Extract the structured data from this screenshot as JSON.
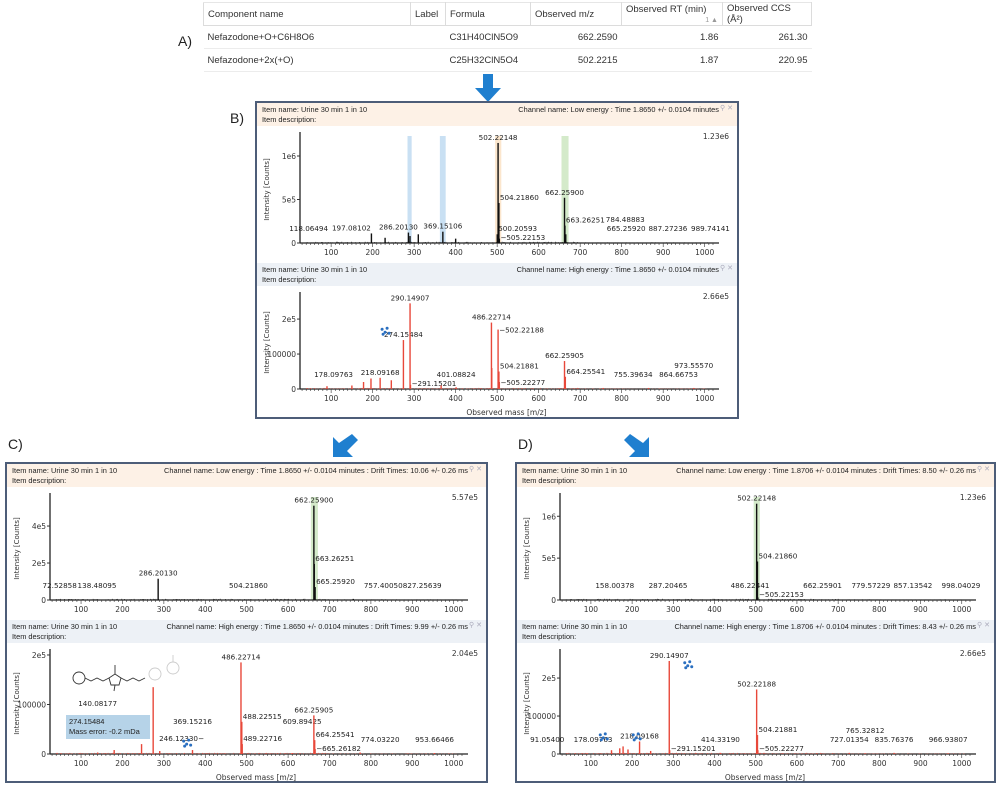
{
  "panel_labels": {
    "a": "A)",
    "b": "B)",
    "c": "C)",
    "d": "D)"
  },
  "table": {
    "columns": [
      "Component name",
      "Label",
      "Formula",
      "Observed m/z",
      "Observed RT (min)",
      "Observed CCS (Å²)"
    ],
    "sort_indicator": "1 ▲",
    "rows": [
      [
        "Nefazodone+O+C6H8O6",
        "",
        "C31H40ClN5O9",
        "662.2590",
        "1.86",
        "261.30"
      ],
      [
        "Nefazodone+2x(+O)",
        "",
        "C25H32ClN5O4",
        "502.2215",
        "1.87",
        "220.95"
      ]
    ]
  },
  "colors": {
    "arrow": "#1f7fcf",
    "low_energy_peaks": "#111111",
    "high_energy_peaks": "#e8483a",
    "panel_border": "#4d5d78",
    "highlight_green": "#cfe8c4",
    "highlight_blue": "#bcd8f0",
    "highlight_orange": "#fbe3c8",
    "fragment_icon": "#2a6fc0"
  },
  "item_name": "Item name: Urine 30 min 1 in 10",
  "item_description": "Item description:",
  "icons": {
    "pin": "pin-icon",
    "close": "close-icon"
  },
  "tooltip": {
    "line1": "274.15484",
    "line2": "Mass error: -0.2 mDa"
  },
  "chart_data": [
    {
      "type": "bar",
      "panel": "B",
      "channel": "Channel name: Low energy : Time 1.8650 +/- 0.0104 minutes",
      "ymax_label": "1.23e6",
      "ymax": 1230000,
      "xlim": [
        25,
        1020
      ],
      "ylabel": "Intensity [Counts]",
      "xlabel": "",
      "xticks": [
        100,
        200,
        300,
        400,
        500,
        600,
        700,
        800,
        900,
        1000
      ],
      "yticks": [
        [
          0,
          "0"
        ],
        [
          500000,
          "5e5"
        ],
        [
          1000000,
          "1e6"
        ]
      ],
      "highlights": [
        {
          "from": 284,
          "to": 294,
          "color": "blue"
        },
        {
          "from": 362,
          "to": 376,
          "color": "blue"
        },
        {
          "from": 495,
          "to": 510,
          "color": "orange"
        },
        {
          "from": 655,
          "to": 672,
          "color": "green"
        }
      ],
      "fragment_icons": [],
      "peaks": [
        [
          118.06494,
          8000,
          "118.06494"
        ],
        [
          197.08102,
          110000,
          "197.08102"
        ],
        [
          230,
          60000,
          ""
        ],
        [
          286.2013,
          120000,
          "286.20130"
        ],
        [
          290,
          80000,
          ""
        ],
        [
          310,
          100000,
          ""
        ],
        [
          369.15106,
          130000,
          "369.15106"
        ],
        [
          400,
          50000,
          ""
        ],
        [
          500.20593,
          100000,
          "500.20593"
        ],
        [
          502.22148,
          1150000,
          "502.22148"
        ],
        [
          504.2186,
          460000,
          "504.21860"
        ],
        [
          505.22153,
          50000,
          "−505.22153"
        ],
        [
          662.259,
          520000,
          "662.25900"
        ],
        [
          663.26251,
          200000,
          "663.26251"
        ],
        [
          665.2592,
          100000,
          "665.25920"
        ],
        [
          784.48883,
          5000,
          "784.48883"
        ],
        [
          887.27236,
          4000,
          "887.27236"
        ],
        [
          989.74141,
          4000,
          "989.74141"
        ]
      ]
    },
    {
      "type": "bar",
      "panel": "B",
      "channel": "Channel name: High energy : Time 1.8650 +/- 0.0104 minutes",
      "ymax_label": "2.66e5",
      "ymax": 266000,
      "xlim": [
        25,
        1020
      ],
      "ylabel": "Intensity [Counts]",
      "xlabel": "Observed mass [m/z]",
      "xticks": [
        100,
        200,
        300,
        400,
        500,
        600,
        700,
        800,
        900,
        1000
      ],
      "yticks": [
        [
          0,
          "0"
        ],
        [
          100000,
          "100000"
        ],
        [
          200000,
          "2e5"
        ]
      ],
      "highlights": [],
      "fragment_icons": [
        [
          230,
          165000
        ]
      ],
      "peaks": [
        [
          90,
          8000,
          ""
        ],
        [
          150,
          10000,
          ""
        ],
        [
          178.09763,
          20000,
          "178.09763"
        ],
        [
          196,
          30000,
          ""
        ],
        [
          218.09168,
          32000,
          "218.09168"
        ],
        [
          245,
          25000,
          ""
        ],
        [
          274.15484,
          140000,
          "274.15484"
        ],
        [
          290.14907,
          245000,
          "290.14907"
        ],
        [
          291.15201,
          12000,
          "−291.15201"
        ],
        [
          365,
          10000,
          ""
        ],
        [
          401.08824,
          5000,
          "401.08824"
        ],
        [
          486.22714,
          190000,
          "486.22714"
        ],
        [
          487,
          60000,
          ""
        ],
        [
          502.22188,
          170000,
          "−502.22188"
        ],
        [
          504.21881,
          50000,
          "504.21881"
        ],
        [
          505.22277,
          20000,
          "−505.22277"
        ],
        [
          662.25905,
          80000,
          "662.25905"
        ],
        [
          664.25541,
          35000,
          "664.25541"
        ],
        [
          755.39634,
          3000,
          "755.39634"
        ],
        [
          864.66753,
          3000,
          "864.66753"
        ],
        [
          973.5557,
          3000,
          "973.55570"
        ]
      ]
    },
    {
      "type": "bar",
      "panel": "C",
      "channel": "Channel name: Low energy : Time 1.8650 +/- 0.0104 minutes : Drift Times: 10.06 +/- 0.26 ms",
      "ymax_label": "5.57e5",
      "ymax": 557000,
      "xlim": [
        25,
        1020
      ],
      "ylabel": "Intensity [Counts]",
      "xlabel": "",
      "xticks": [
        100,
        200,
        300,
        400,
        500,
        600,
        700,
        800,
        900,
        1000
      ],
      "yticks": [
        [
          0,
          "0"
        ],
        [
          200000,
          "2e5"
        ],
        [
          400000,
          "4e5"
        ]
      ],
      "highlights": [
        {
          "from": 655,
          "to": 672,
          "color": "green"
        }
      ],
      "fragment_icons": [],
      "peaks": [
        [
          72.52858,
          2000,
          "72.52858"
        ],
        [
          138.48095,
          3000,
          "138.48095"
        ],
        [
          286.2013,
          115000,
          "286.20130"
        ],
        [
          504.2186,
          3000,
          "504.21860"
        ],
        [
          662.259,
          510000,
          "662.25900"
        ],
        [
          663.26251,
          195000,
          "663.26251"
        ],
        [
          665.2592,
          70000,
          "665.25920"
        ],
        [
          757.4005,
          6000,
          "757.40050"
        ],
        [
          827.25639,
          3000,
          "827.25639"
        ]
      ]
    },
    {
      "type": "bar",
      "panel": "C",
      "channel": "Channel name: High energy : Time 1.8650 +/- 0.0104 minutes : Drift Times: 9.99 +/- 0.26 ms",
      "ymax_label": "2.04e5",
      "ymax": 204000,
      "xlim": [
        25,
        1020
      ],
      "ylabel": "Intensity [Counts]",
      "xlabel": "Observed mass [m/z]",
      "xticks": [
        100,
        200,
        300,
        400,
        500,
        600,
        700,
        800,
        900,
        1000
      ],
      "yticks": [
        [
          0,
          "0"
        ],
        [
          100000,
          "100000"
        ],
        [
          200000,
          "2e5"
        ]
      ],
      "highlights": [],
      "fragment_icons": [
        [
          355,
          22000
        ]
      ],
      "peaks": [
        [
          140.08177,
          3000,
          "140.08177"
        ],
        [
          180,
          8000,
          ""
        ],
        [
          246.1233,
          20000,
          "246.12330−"
        ],
        [
          274.15484,
          135000,
          ""
        ],
        [
          290,
          6000,
          ""
        ],
        [
          369.15216,
          8000,
          "369.15216"
        ],
        [
          486.22714,
          185000,
          "486.22714"
        ],
        [
          488.22515,
          65000,
          "488.22515"
        ],
        [
          489.22716,
          20000,
          "489.22716"
        ],
        [
          609.89425,
          2000,
          "609.89425"
        ],
        [
          662.25905,
          78000,
          "662.25905"
        ],
        [
          664.25541,
          28000,
          "664.25541"
        ],
        [
          665.26182,
          10000,
          "−665.26182"
        ],
        [
          774.0322,
          3000,
          "774.03220"
        ],
        [
          953.66466,
          2000,
          "953.66466"
        ]
      ]
    },
    {
      "type": "bar",
      "panel": "D",
      "channel": "Channel name: Low energy : Time 1.8706 +/- 0.0104 minutes : Drift Times: 8.50 +/- 0.26 ms",
      "ymax_label": "1.23e6",
      "ymax": 1230000,
      "xlim": [
        25,
        1020
      ],
      "ylabel": "Intensity [Counts]",
      "xlabel": "",
      "xticks": [
        100,
        200,
        300,
        400,
        500,
        600,
        700,
        800,
        900,
        1000
      ],
      "yticks": [
        [
          0,
          "0"
        ],
        [
          500000,
          "5e5"
        ],
        [
          1000000,
          "1e6"
        ]
      ],
      "highlights": [
        {
          "from": 495,
          "to": 510,
          "color": "green"
        }
      ],
      "fragment_icons": [],
      "peaks": [
        [
          158.00378,
          2000,
          "158.00378"
        ],
        [
          287.20465,
          3000,
          "287.20465"
        ],
        [
          486.22441,
          5000,
          "486.22441"
        ],
        [
          502.22148,
          1150000,
          "502.22148"
        ],
        [
          504.2186,
          460000,
          "504.21860"
        ],
        [
          505.22153,
          30000,
          "−505.22153"
        ],
        [
          662.25901,
          2000,
          "662.25901"
        ],
        [
          779.57229,
          2000,
          "779.57229"
        ],
        [
          857.13542,
          2000,
          "857.13542"
        ],
        [
          998.04029,
          2000,
          "998.04029"
        ]
      ]
    },
    {
      "type": "bar",
      "panel": "D",
      "channel": "Channel name: High energy : Time 1.8706 +/- 0.0104 minutes : Drift Times: 8.43 +/- 0.26 ms",
      "ymax_label": "2.66e5",
      "ymax": 266000,
      "xlim": [
        25,
        1020
      ],
      "ylabel": "Intensity [Counts]",
      "xlabel": "Observed mass [m/z]",
      "xticks": [
        100,
        200,
        300,
        400,
        500,
        600,
        700,
        800,
        900,
        1000
      ],
      "yticks": [
        [
          0,
          "0"
        ],
        [
          100000,
          "100000"
        ],
        [
          200000,
          "2e5"
        ]
      ],
      "highlights": [],
      "fragment_icons": [
        [
          130,
          45000
        ],
        [
          210,
          45000
        ],
        [
          335,
          235000
        ]
      ],
      "peaks": [
        [
          91.054,
          2000,
          "91.05400"
        ],
        [
          150,
          10000,
          ""
        ],
        [
          170,
          15000,
          ""
        ],
        [
          178.09763,
          20000,
          "178.09763"
        ],
        [
          190,
          12000,
          ""
        ],
        [
          218.09168,
          33000,
          "218.09168"
        ],
        [
          245,
          8000,
          ""
        ],
        [
          290.14907,
          245000,
          "290.14907"
        ],
        [
          291.15201,
          10000,
          "−291.15201"
        ],
        [
          414.3319,
          3000,
          "414.33190"
        ],
        [
          502.22188,
          170000,
          "502.22188"
        ],
        [
          504.21881,
          50000,
          "504.21881"
        ],
        [
          505.22277,
          10000,
          "−505.22277"
        ],
        [
          727.01354,
          3000,
          "727.01354"
        ],
        [
          765.32812,
          2000,
          "765.32812"
        ],
        [
          835.76376,
          3000,
          "835.76376"
        ],
        [
          966.93807,
          2000,
          "966.93807"
        ]
      ]
    }
  ]
}
